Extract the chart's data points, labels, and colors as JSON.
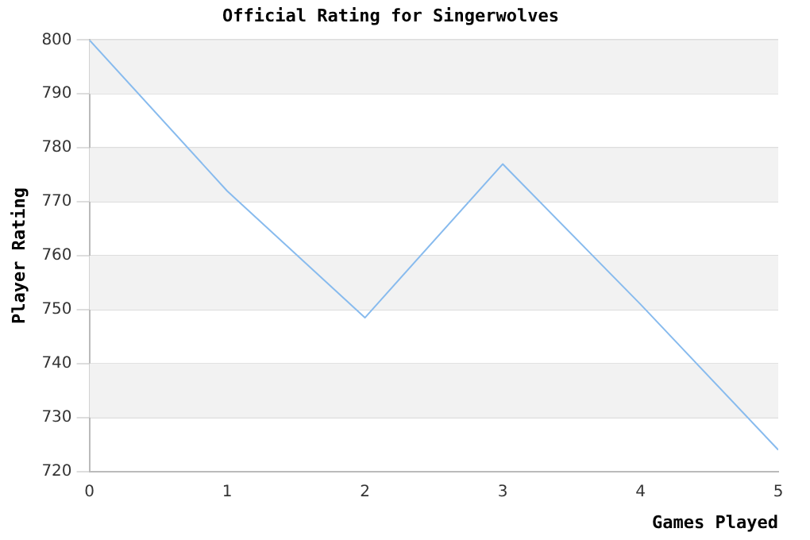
{
  "chart_data": {
    "type": "line",
    "title": "Official Rating for Singerwolves",
    "xlabel": "Games Played",
    "ylabel": "Player Rating",
    "x": [
      0,
      1,
      2,
      3,
      4,
      5
    ],
    "series": [
      {
        "color": "#88bbee",
        "values": [
          800,
          772,
          748.5,
          777,
          751,
          724
        ]
      }
    ],
    "xlim": [
      0,
      5
    ],
    "xticks": [
      0,
      1,
      2,
      3,
      4,
      5
    ],
    "ylim": [
      720,
      800
    ],
    "yticks": [
      720,
      730,
      740,
      750,
      760,
      770,
      780,
      790,
      800
    ],
    "grid": "y",
    "legend": false,
    "marker": "none",
    "line_style": "solid"
  }
}
